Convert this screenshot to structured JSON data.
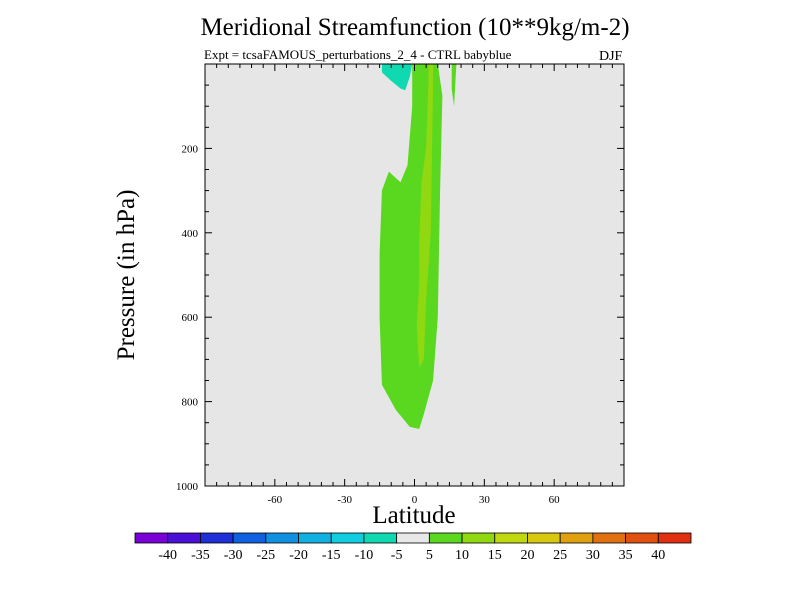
{
  "chart_data": {
    "type": "contour",
    "title": "Meridional Streamfunction (10**9kg/m-2)",
    "subtitle": "Expt = tcsaFAMOUS_perturbations_2_4 - CTRL babyblue",
    "season": "DJF",
    "xlabel": "Latitude",
    "ylabel": "Pressure (in hPa)",
    "xlim": [
      -90,
      90
    ],
    "ylim": [
      1000,
      0
    ],
    "x_ticks": [
      -60,
      -30,
      0,
      30,
      60
    ],
    "x_tick_labels": [
      "-60",
      "-30",
      "0",
      "30",
      "60"
    ],
    "y_ticks": [
      200,
      400,
      600,
      800,
      1000
    ],
    "y_tick_labels": [
      "200",
      "400",
      "600",
      "800",
      "1000"
    ],
    "background_color": "#e6e6e6",
    "colorbar": {
      "levels": [
        "-40",
        "-35",
        "-30",
        "-25",
        "-20",
        "-15",
        "-10",
        "-5",
        "5",
        "10",
        "15",
        "20",
        "25",
        "30",
        "35",
        "40"
      ],
      "colors": [
        "#7a00d8",
        "#4a10d8",
        "#2030d8",
        "#1060e0",
        "#1090e0",
        "#10b0e0",
        "#10cde0",
        "#10d8b0",
        "#e8e8e8",
        "#5ad820",
        "#90d810",
        "#c0d810",
        "#d8c810",
        "#e0a010",
        "#e07010",
        "#e05010",
        "#e03010"
      ]
    },
    "regions": [
      {
        "name": "neg-cell-upper-tropics",
        "level_range": [
          -10,
          -5
        ],
        "color": "#10d8b0",
        "points": [
          [
            -14,
            0
          ],
          [
            -1,
            0
          ],
          [
            -2,
            30
          ],
          [
            -4,
            62
          ],
          [
            -6,
            58
          ],
          [
            -10,
            40
          ],
          [
            -14,
            20
          ]
        ]
      },
      {
        "name": "pos-cell-main",
        "level_range": [
          5,
          10
        ],
        "color": "#5ad820",
        "points": [
          [
            -1,
            0
          ],
          [
            10,
            0
          ],
          [
            12,
            75
          ],
          [
            11,
            300
          ],
          [
            10,
            600
          ],
          [
            8,
            750
          ],
          [
            4,
            830
          ],
          [
            2,
            865
          ],
          [
            -2,
            860
          ],
          [
            -8,
            820
          ],
          [
            -14,
            760
          ],
          [
            -15,
            600
          ],
          [
            -15,
            450
          ],
          [
            -14,
            300
          ],
          [
            -11,
            255
          ],
          [
            -6,
            280
          ],
          [
            -3,
            240
          ],
          [
            -1,
            100
          ]
        ]
      },
      {
        "name": "pos-cell-upper-right",
        "level_range": [
          5,
          10
        ],
        "color": "#5ad820",
        "points": [
          [
            16,
            0
          ],
          [
            18,
            0
          ],
          [
            17,
            100
          ],
          [
            16,
            60
          ]
        ]
      },
      {
        "name": "pos-cell-inner",
        "level_range": [
          10,
          15
        ],
        "color": "#90d810",
        "points": [
          [
            6,
            0
          ],
          [
            8,
            0
          ],
          [
            8,
            40
          ],
          [
            7,
            400
          ],
          [
            5,
            560
          ],
          [
            4,
            700
          ],
          [
            2,
            720
          ],
          [
            1,
            620
          ],
          [
            2,
            520
          ],
          [
            2,
            420
          ],
          [
            3,
            280
          ],
          [
            5,
            200
          ],
          [
            6,
            40
          ]
        ]
      }
    ]
  }
}
